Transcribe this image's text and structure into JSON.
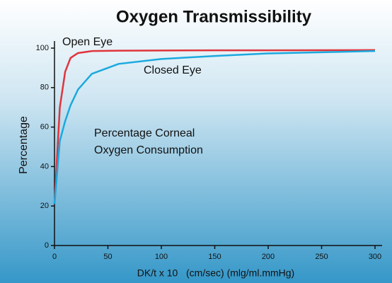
{
  "chart_data": {
    "type": "line",
    "title": "Oxygen Transmissibility",
    "xlabel": "DK/t x 10   (cm/sec) (mlg/ml.mmHg)",
    "ylabel": "Percentage",
    "annotation": [
      "Percentage Corneal",
      "Oxygen Consumption"
    ],
    "x": [
      0,
      5,
      10,
      15,
      22,
      35,
      60,
      100,
      150,
      200,
      300
    ],
    "series": [
      {
        "name": "Open Eye",
        "color": "#e0343c",
        "values": [
          21,
          70,
          88,
          95,
          97.5,
          98.5,
          98.7,
          98.8,
          98.9,
          98.9,
          99
        ]
      },
      {
        "name": "Closed Eye",
        "color": "#1ba9de",
        "values": [
          21,
          53,
          63,
          71,
          79,
          87,
          92,
          94.5,
          96,
          97.3,
          98.5
        ]
      }
    ],
    "xlim": [
      0,
      300
    ],
    "ylim": [
      0,
      100
    ],
    "xticks": [
      0,
      50,
      100,
      150,
      200,
      250,
      300
    ],
    "yticks": [
      0,
      20,
      40,
      60,
      80,
      100
    ],
    "grid": false
  }
}
